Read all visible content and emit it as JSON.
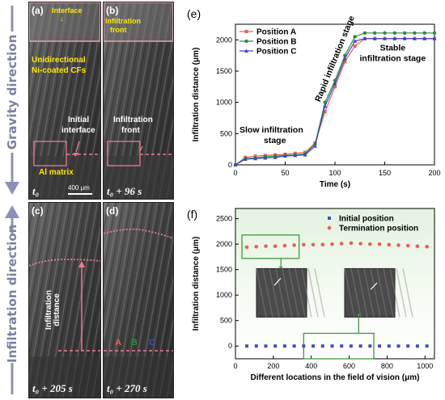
{
  "left": {
    "gravity_label": "Gravity direction",
    "infiltration_label": "Infiltration direction",
    "panels": {
      "a": {
        "tag": "(a)",
        "interface": "Interface",
        "cfs1": "Unidirectional",
        "cfs2": "Ni-coated CFs",
        "initial1": "Initial",
        "initial2": "interface",
        "matrix": "Al matrix",
        "time": "t₀",
        "scale": "400 μm"
      },
      "b": {
        "tag": "(b)",
        "front_top1": "Infiltration",
        "front_top2": "front",
        "front1": "Infiltration",
        "front2": "front",
        "time": "t₀ + 96 s"
      },
      "c": {
        "tag": "(c)",
        "dist1": "Infiltration",
        "dist2": "distance",
        "time": "t₀ + 205 s"
      },
      "d": {
        "tag": "(d)",
        "posA": "A",
        "posB": "B",
        "posC": "C",
        "time": "t₀ + 270 s"
      }
    }
  },
  "colors": {
    "posA": "#e8605a",
    "posB": "#2e8b3e",
    "posC": "#3a49c6",
    "initial": "#3f4fc4",
    "termination": "#e8605a",
    "box": "#3d9b3d"
  },
  "chart_data": [
    {
      "panel": "(e)",
      "type": "line",
      "xlabel": "Time (s)",
      "ylabel": "Infiltration distance (μm)",
      "xlim": [
        0,
        200
      ],
      "ylim": [
        0,
        2250
      ],
      "x_ticks": [
        0,
        50,
        100,
        150,
        200
      ],
      "y_ticks": [
        0,
        500,
        1000,
        1500,
        2000
      ],
      "legend_position": "top-left",
      "grid": false,
      "x": [
        0,
        10,
        20,
        30,
        40,
        50,
        60,
        70,
        80,
        90,
        100,
        110,
        120,
        130,
        140,
        150,
        160,
        170,
        180,
        190,
        200
      ],
      "series": [
        {
          "name": "Position A",
          "values": [
            0,
            120,
            140,
            150,
            160,
            170,
            185,
            200,
            350,
            850,
            1250,
            1650,
            1900,
            2020,
            2020,
            2020,
            2020,
            2020,
            2020,
            2020,
            2020
          ]
        },
        {
          "name": "Position B",
          "values": [
            0,
            100,
            110,
            130,
            140,
            150,
            160,
            175,
            330,
            1000,
            1350,
            1750,
            2050,
            2110,
            2110,
            2110,
            2110,
            2110,
            2110,
            2110,
            2110
          ]
        },
        {
          "name": "Position C",
          "values": [
            0,
            90,
            100,
            110,
            120,
            140,
            150,
            160,
            300,
            940,
            1300,
            1700,
            1980,
            2020,
            2020,
            2020,
            2020,
            2020,
            2020,
            2020,
            2020
          ]
        }
      ],
      "annotations": {
        "slow1": "Slow infiltration",
        "slow2": "stage",
        "rapid": "Rapid infiltration stage",
        "stable1": "Stable",
        "stable2": "infiltration stage"
      }
    },
    {
      "panel": "(f)",
      "type": "scatter",
      "xlabel": "Different locations in the field of vision (μm)",
      "ylabel": "Infiltration distance (μm)",
      "xlim": [
        0,
        1050
      ],
      "ylim": [
        -250,
        2700
      ],
      "x_ticks": [
        0,
        200,
        400,
        600,
        800,
        1000
      ],
      "y_ticks": [
        0,
        500,
        1000,
        1500,
        2000,
        2500
      ],
      "legend_position": "top-right",
      "x": [
        60,
        110,
        160,
        210,
        260,
        310,
        360,
        410,
        460,
        510,
        560,
        610,
        660,
        710,
        760,
        810,
        860,
        910,
        960,
        1010
      ],
      "series": [
        {
          "name": "Initial position",
          "values": [
            0,
            0,
            0,
            0,
            0,
            0,
            0,
            0,
            0,
            0,
            0,
            0,
            0,
            0,
            0,
            0,
            0,
            0,
            0,
            0
          ]
        },
        {
          "name": "Termination position",
          "values": [
            1940,
            1950,
            1960,
            1960,
            1970,
            1980,
            1990,
            1990,
            1990,
            2000,
            2010,
            2020,
            2010,
            2000,
            2000,
            1990,
            1980,
            1970,
            1960,
            1950
          ]
        }
      ]
    }
  ]
}
